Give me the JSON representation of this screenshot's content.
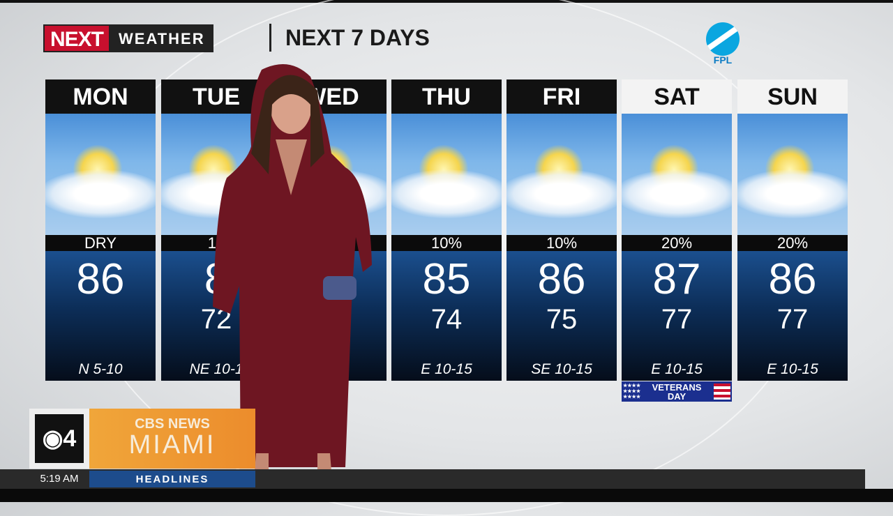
{
  "header": {
    "logo_next": "NEXT",
    "logo_weather": "WEATHER",
    "title": "NEXT 7 DAYS",
    "sponsor": "FPL"
  },
  "days": [
    {
      "day": "MON",
      "precip": "DRY",
      "high": "86",
      "low": "",
      "wind": "N 5-10",
      "header_style": "dark"
    },
    {
      "day": "TUE",
      "precip": "10",
      "high": "8",
      "low": "72",
      "wind": "NE 10-1",
      "header_style": "dark"
    },
    {
      "day": "WED",
      "precip": "",
      "high": "",
      "low": "",
      "wind": "5",
      "header_style": "dark"
    },
    {
      "day": "THU",
      "precip": "10%",
      "high": "85",
      "low": "74",
      "wind": "E 10-15",
      "header_style": "dark"
    },
    {
      "day": "FRI",
      "precip": "10%",
      "high": "86",
      "low": "75",
      "wind": "SE 10-15",
      "header_style": "dark"
    },
    {
      "day": "SAT",
      "precip": "20%",
      "high": "87",
      "low": "77",
      "wind": "E 10-15",
      "header_style": "light"
    },
    {
      "day": "SUN",
      "precip": "20%",
      "high": "86",
      "low": "77",
      "wind": "E 10-15",
      "header_style": "light"
    }
  ],
  "holiday": {
    "line1": "VETERANS",
    "line2": "DAY"
  },
  "station": {
    "channel": "4",
    "network": "CBS NEWS",
    "city": "MIAMI",
    "time": "5:19 AM",
    "segment": "HEADLINES"
  },
  "colors": {
    "accent_red": "#c8102e",
    "orange": "#ec8c2c",
    "blue": "#1d4c8c",
    "dress": "#7a1a26"
  }
}
